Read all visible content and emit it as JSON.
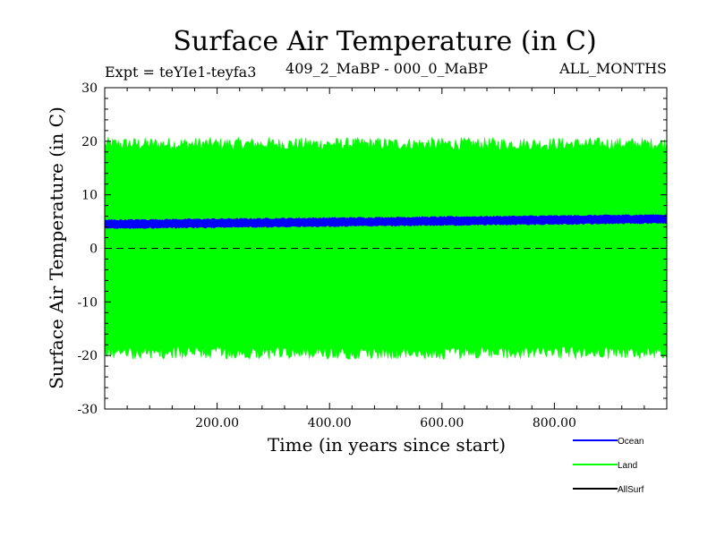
{
  "chart_data": {
    "type": "line",
    "title": "Surface Air Temperature (in C)",
    "experiment": "Expt = teYIe1-teyfa3",
    "comparison": "409_2_MaBP - 000_0_MaBP",
    "months": "ALL_MONTHS",
    "xlabel": "Time (in years since start)",
    "ylabel": "Surface Air Temperature (in C)",
    "xlim": [
      0,
      1000
    ],
    "ylim": [
      -30,
      30
    ],
    "xticks": [
      200,
      400,
      600,
      800
    ],
    "xtick_labels": [
      "200.00",
      "400.00",
      "600.00",
      "800.00"
    ],
    "yticks": [
      -30,
      -20,
      -10,
      0,
      10,
      20,
      30
    ],
    "ytick_labels": [
      "-30",
      "-20",
      "-10",
      "0",
      "10",
      "20",
      "30"
    ],
    "reference_line": {
      "y": 0,
      "style": "dashed"
    },
    "series": [
      {
        "name": "Ocean",
        "color": "#0000ff",
        "mean_start": 4.5,
        "mean_end": 5.5,
        "amplitude": 0.9
      },
      {
        "name": "Land",
        "color": "#00ff00",
        "upper_mean": 19.5,
        "lower_mean": -19.5,
        "noise": 1.2
      },
      {
        "name": "AllSurf",
        "color": "#000000"
      }
    ],
    "legend": [
      "Ocean",
      "Land",
      "AllSurf"
    ]
  }
}
